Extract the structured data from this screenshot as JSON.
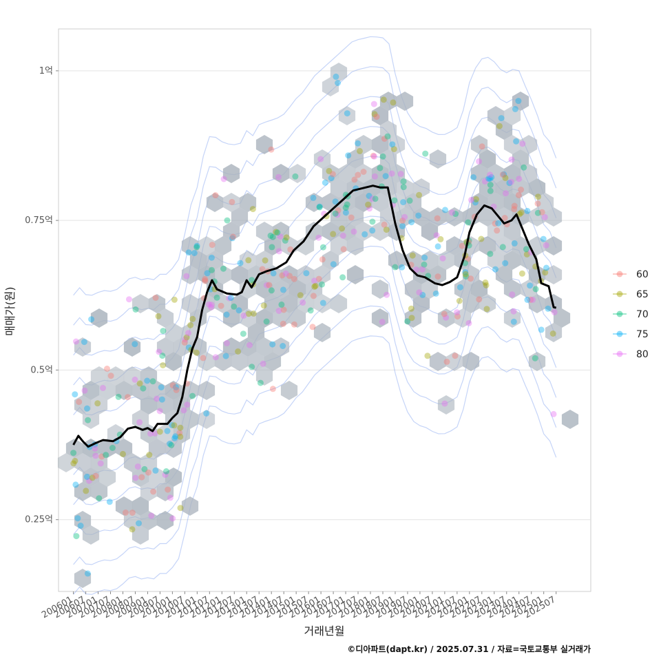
{
  "chart_data": {
    "type": "scatter",
    "xlabel": "거래년월",
    "ylabel": "매매가(원)",
    "caption": "©디아파트(dapt.kr) / 2025.07.31 / 자료=국토교통부 실거래가",
    "x_ticks": [
      "200601",
      "200607",
      "200701",
      "200707",
      "200801",
      "200807",
      "200901",
      "200907",
      "201001",
      "201007",
      "201101",
      "201107",
      "201201",
      "201207",
      "201301",
      "201307",
      "201401",
      "201407",
      "201501",
      "201507",
      "201601",
      "201607",
      "201701",
      "201707",
      "201801",
      "201807",
      "201901",
      "201907",
      "202001",
      "202007",
      "202101",
      "202107",
      "202201",
      "202207",
      "202301",
      "202307",
      "202401",
      "202407",
      "202501",
      "202507"
    ],
    "y_ticks": [
      {
        "value": 0.25,
        "label": "0.25억"
      },
      {
        "value": 0.5,
        "label": "0.5억"
      },
      {
        "value": 0.75,
        "label": "0.75억"
      },
      {
        "value": 1.0,
        "label": "1억"
      }
    ],
    "xlim": [
      2005.4,
      2026.9
    ],
    "ylim": [
      0.13,
      1.07
    ],
    "y_unit": "억",
    "grid": true,
    "legend_position": "right",
    "legend": [
      {
        "label": "60",
        "color": "#F8766D"
      },
      {
        "label": "65",
        "color": "#A3A500"
      },
      {
        "label": "70",
        "color": "#00BF7D"
      },
      {
        "label": "75",
        "color": "#00B0F6"
      },
      {
        "label": "80",
        "color": "#E76BF3"
      }
    ],
    "colors": {
      "trend_line": "#000000",
      "hexbin": "#aab3bd",
      "density_contour": "#7f9ff0",
      "grid": "#e3e3e3",
      "panel_border": "#cccccc"
    },
    "moving_average": [
      [
        2006.0,
        0.375
      ],
      [
        2006.2,
        0.39
      ],
      [
        2006.4,
        0.38
      ],
      [
        2006.6,
        0.372
      ],
      [
        2006.9,
        0.378
      ],
      [
        2007.2,
        0.383
      ],
      [
        2007.6,
        0.381
      ],
      [
        2007.9,
        0.388
      ],
      [
        2008.2,
        0.402
      ],
      [
        2008.5,
        0.405
      ],
      [
        2008.8,
        0.4
      ],
      [
        2009.0,
        0.403
      ],
      [
        2009.2,
        0.398
      ],
      [
        2009.4,
        0.41
      ],
      [
        2009.8,
        0.41
      ],
      [
        2010.0,
        0.42
      ],
      [
        2010.2,
        0.428
      ],
      [
        2010.4,
        0.455
      ],
      [
        2010.6,
        0.5
      ],
      [
        2010.8,
        0.535
      ],
      [
        2011.0,
        0.555
      ],
      [
        2011.2,
        0.6
      ],
      [
        2011.4,
        0.63
      ],
      [
        2011.6,
        0.65
      ],
      [
        2011.8,
        0.635
      ],
      [
        2012.2,
        0.628
      ],
      [
        2012.6,
        0.626
      ],
      [
        2012.8,
        0.63
      ],
      [
        2013.0,
        0.65
      ],
      [
        2013.2,
        0.638
      ],
      [
        2013.5,
        0.66
      ],
      [
        2013.8,
        0.665
      ],
      [
        2014.2,
        0.67
      ],
      [
        2014.6,
        0.68
      ],
      [
        2014.9,
        0.7
      ],
      [
        2015.3,
        0.715
      ],
      [
        2015.7,
        0.74
      ],
      [
        2016.1,
        0.755
      ],
      [
        2016.5,
        0.77
      ],
      [
        2016.9,
        0.785
      ],
      [
        2017.3,
        0.8
      ],
      [
        2017.7,
        0.804
      ],
      [
        2018.1,
        0.808
      ],
      [
        2018.4,
        0.805
      ],
      [
        2018.7,
        0.805
      ],
      [
        2019.0,
        0.745
      ],
      [
        2019.3,
        0.7
      ],
      [
        2019.6,
        0.67
      ],
      [
        2019.9,
        0.658
      ],
      [
        2020.2,
        0.655
      ],
      [
        2020.6,
        0.645
      ],
      [
        2020.9,
        0.642
      ],
      [
        2021.2,
        0.647
      ],
      [
        2021.5,
        0.655
      ],
      [
        2021.8,
        0.69
      ],
      [
        2022.0,
        0.73
      ],
      [
        2022.3,
        0.76
      ],
      [
        2022.6,
        0.775
      ],
      [
        2022.9,
        0.77
      ],
      [
        2023.1,
        0.76
      ],
      [
        2023.4,
        0.745
      ],
      [
        2023.7,
        0.75
      ],
      [
        2023.9,
        0.76
      ],
      [
        2024.1,
        0.74
      ],
      [
        2024.4,
        0.71
      ],
      [
        2024.7,
        0.685
      ],
      [
        2024.9,
        0.645
      ],
      [
        2025.2,
        0.64
      ],
      [
        2025.4,
        0.605
      ],
      [
        2025.5,
        0.604
      ]
    ]
  }
}
